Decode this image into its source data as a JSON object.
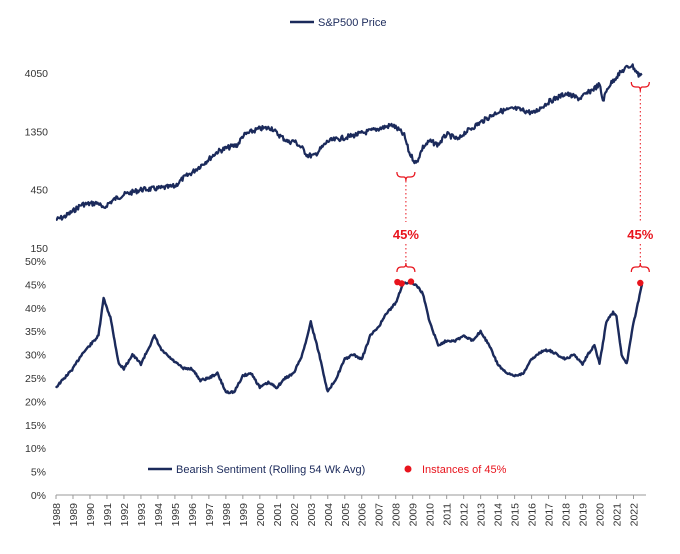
{
  "colors": {
    "line": "#1b2a5b",
    "accent": "#e8141d",
    "axis": "#999999",
    "text": "#333333"
  },
  "chart_data": [
    {
      "type": "line",
      "title": "",
      "legend": {
        "label": "S&P500 Price",
        "placement": "top-center"
      },
      "y_scale": "log",
      "ylim": [
        150,
        5600
      ],
      "ytick_labels": [
        "4050",
        "1350",
        "450",
        "150"
      ],
      "ytick_values": [
        4050,
        1350,
        450,
        150
      ],
      "series": [
        {
          "name": "S&P500 Price",
          "x": [
            1988.0,
            1988.5,
            1989.0,
            1989.5,
            1990.0,
            1990.5,
            1990.8,
            1991.0,
            1991.5,
            1992.0,
            1993.0,
            1994.0,
            1995.0,
            1995.5,
            1996.0,
            1997.0,
            1997.5,
            1998.0,
            1998.7,
            1999.0,
            1999.5,
            2000.0,
            2000.7,
            2001.0,
            2001.7,
            2002.0,
            2002.5,
            2002.8,
            2003.2,
            2004.0,
            2005.0,
            2006.0,
            2007.0,
            2007.8,
            2008.2,
            2008.5,
            2008.8,
            2009.2,
            2009.6,
            2010.0,
            2010.5,
            2011.0,
            2011.7,
            2012.0,
            2013.0,
            2014.0,
            2015.0,
            2015.7,
            2016.1,
            2017.0,
            2018.0,
            2018.8,
            2019.0,
            2020.0,
            2020.2,
            2020.5,
            2021.0,
            2021.5,
            2021.9,
            2022.0,
            2022.3,
            2022.5
          ],
          "values": [
            255,
            270,
            300,
            340,
            345,
            350,
            310,
            340,
            380,
            410,
            450,
            460,
            480,
            560,
            620,
            800,
            920,
            980,
            1050,
            1240,
            1340,
            1420,
            1440,
            1300,
            1100,
            1130,
            980,
            860,
            850,
            1120,
            1200,
            1300,
            1420,
            1520,
            1380,
            1250,
            900,
            735,
            1000,
            1120,
            1050,
            1280,
            1150,
            1300,
            1600,
            1950,
            2070,
            1970,
            1900,
            2350,
            2750,
            2500,
            2600,
            3250,
            2400,
            3100,
            3800,
            4400,
            4700,
            4500,
            3900,
            4000
          ]
        }
      ]
    },
    {
      "type": "line",
      "title": "",
      "legend": {
        "placement": "bottom-center"
      },
      "ylim": [
        0,
        50
      ],
      "ytick_labels": [
        "0%",
        "5%",
        "10%",
        "15%",
        "20%",
        "25%",
        "30%",
        "35%",
        "40%",
        "45%",
        "50%"
      ],
      "ytick_values": [
        0,
        5,
        10,
        15,
        20,
        25,
        30,
        35,
        40,
        45,
        50
      ],
      "xlim": [
        1988,
        2022.5
      ],
      "xtick_labels": [
        "1988",
        "1989",
        "1990",
        "1991",
        "1992",
        "1993",
        "1994",
        "1995",
        "1996",
        "1997",
        "1998",
        "1999",
        "2000",
        "2001",
        "2002",
        "2003",
        "2004",
        "2005",
        "2006",
        "2007",
        "2008",
        "2009",
        "2010",
        "2011",
        "2012",
        "2013",
        "2014",
        "2015",
        "2016",
        "2017",
        "2018",
        "2019",
        "2020",
        "2021",
        "2022"
      ],
      "series": [
        {
          "name": "Bearish Sentiment (Rolling 54 Wk Avg)",
          "x": [
            1988.0,
            1988.5,
            1989.0,
            1989.5,
            1990.0,
            1990.5,
            1990.8,
            1991.2,
            1991.7,
            1992.0,
            1992.5,
            1993.0,
            1993.4,
            1993.8,
            1994.2,
            1994.8,
            1995.5,
            1996.0,
            1996.5,
            1997.0,
            1997.5,
            1998.0,
            1998.5,
            1999.0,
            1999.5,
            2000.0,
            2000.5,
            2001.0,
            2001.5,
            2002.0,
            2002.5,
            2002.8,
            2003.0,
            2003.5,
            2004.0,
            2004.5,
            2005.0,
            2005.5,
            2006.0,
            2006.5,
            2007.0,
            2007.5,
            2008.0,
            2008.4,
            2008.8,
            2009.2,
            2009.6,
            2010.0,
            2010.5,
            2011.0,
            2011.5,
            2012.0,
            2012.5,
            2013.0,
            2013.5,
            2014.0,
            2014.5,
            2015.0,
            2015.5,
            2016.0,
            2016.5,
            2017.0,
            2017.5,
            2018.0,
            2018.5,
            2019.0,
            2019.3,
            2019.7,
            2020.0,
            2020.4,
            2020.8,
            2021.0,
            2021.3,
            2021.6,
            2021.9,
            2022.2,
            2022.5
          ],
          "values": [
            23,
            25,
            27,
            30,
            32,
            34,
            42,
            38,
            28,
            27,
            30,
            28,
            31,
            34,
            31,
            29,
            27,
            27,
            24.5,
            25,
            26,
            22,
            22,
            25.5,
            26,
            23,
            24,
            23,
            25,
            26,
            30,
            34,
            37,
            30,
            22,
            25,
            29,
            30,
            29,
            34,
            36,
            39,
            41,
            45,
            45.5,
            45,
            43,
            37,
            32,
            33,
            33,
            34,
            33,
            35,
            32,
            28,
            26,
            25.5,
            26,
            29,
            30.5,
            31,
            30,
            29,
            30,
            28,
            30,
            32,
            28,
            37,
            39,
            38,
            30,
            28,
            35,
            40,
            45
          ]
        },
        {
          "name": "Instances of 45%",
          "x": [
            2008.1,
            2008.35,
            2008.9,
            2022.4
          ],
          "values": [
            45.5,
            45.2,
            45.6,
            45.3
          ]
        }
      ],
      "annotations": [
        {
          "text": "45%",
          "x": 2008.6
        },
        {
          "text": "45%",
          "x": 2022.4
        }
      ]
    }
  ]
}
